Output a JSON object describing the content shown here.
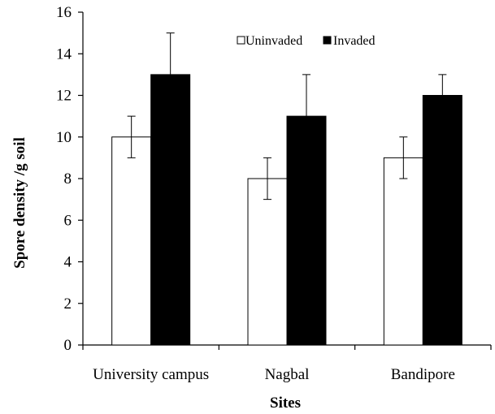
{
  "chart_data": {
    "type": "bar",
    "title": "",
    "xlabel": "Sites",
    "ylabel": "Spore density /g soil",
    "categories": [
      "University campus",
      "Nagbal",
      "Bandipore"
    ],
    "ylim": [
      0,
      16
    ],
    "yticks": [
      0,
      2,
      4,
      6,
      8,
      10,
      12,
      14,
      16
    ],
    "grid": false,
    "legend_position": "top-center",
    "series": [
      {
        "name": "Uninvaded",
        "values": [
          10,
          8,
          9
        ],
        "errors": [
          1,
          1,
          1
        ],
        "color": "#ffffff"
      },
      {
        "name": "Invaded",
        "values": [
          13,
          11,
          12
        ],
        "errors": [
          2,
          2,
          1
        ],
        "color": "#000000"
      }
    ]
  }
}
